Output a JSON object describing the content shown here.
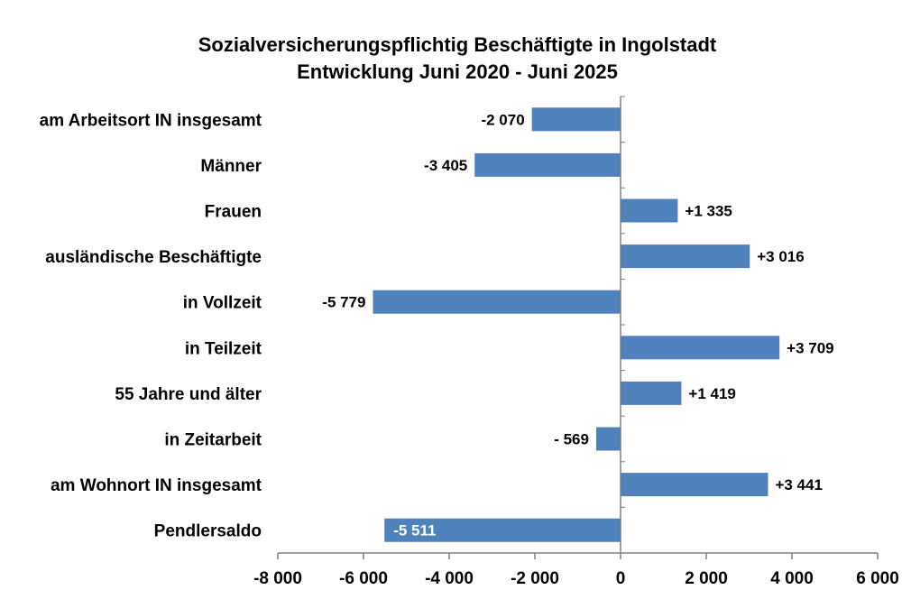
{
  "chart_data": {
    "type": "bar",
    "orientation": "horizontal",
    "title": "Sozialversicherungspflichtig Beschäftigte in Ingolstadt",
    "subtitle": "Entwicklung  Juni 2020 -  Juni 2025",
    "categories": [
      "am Arbeitsort IN insgesamt",
      "Männer",
      "Frauen",
      "ausländische Beschäftigte",
      "in Vollzeit",
      "in Teilzeit",
      "55 Jahre und älter",
      "in Zeitarbeit",
      "am Wohnort IN insgesamt",
      "Pendlersaldo"
    ],
    "values": [
      -2070,
      -3405,
      1335,
      3016,
      -5779,
      3709,
      1419,
      -569,
      3441,
      -5511
    ],
    "data_labels": [
      "-2 070",
      "-3 405",
      "+1 335",
      "+3 016",
      "-5 779",
      "+3 709",
      "+1 419",
      "- 569",
      "+3 441",
      "-5 511"
    ],
    "xlim": [
      -8000,
      6000
    ],
    "ticks": [
      -8000,
      -6000,
      -4000,
      -2000,
      0,
      2000,
      4000,
      6000
    ],
    "tick_labels": [
      "-8 000",
      "-6 000",
      "-4 000",
      "-2 000",
      "0",
      "2 000",
      "4 000",
      "6 000"
    ],
    "bar_color": "#4F81BD",
    "xlabel": "",
    "ylabel": "",
    "grid": false,
    "legend": "none"
  }
}
